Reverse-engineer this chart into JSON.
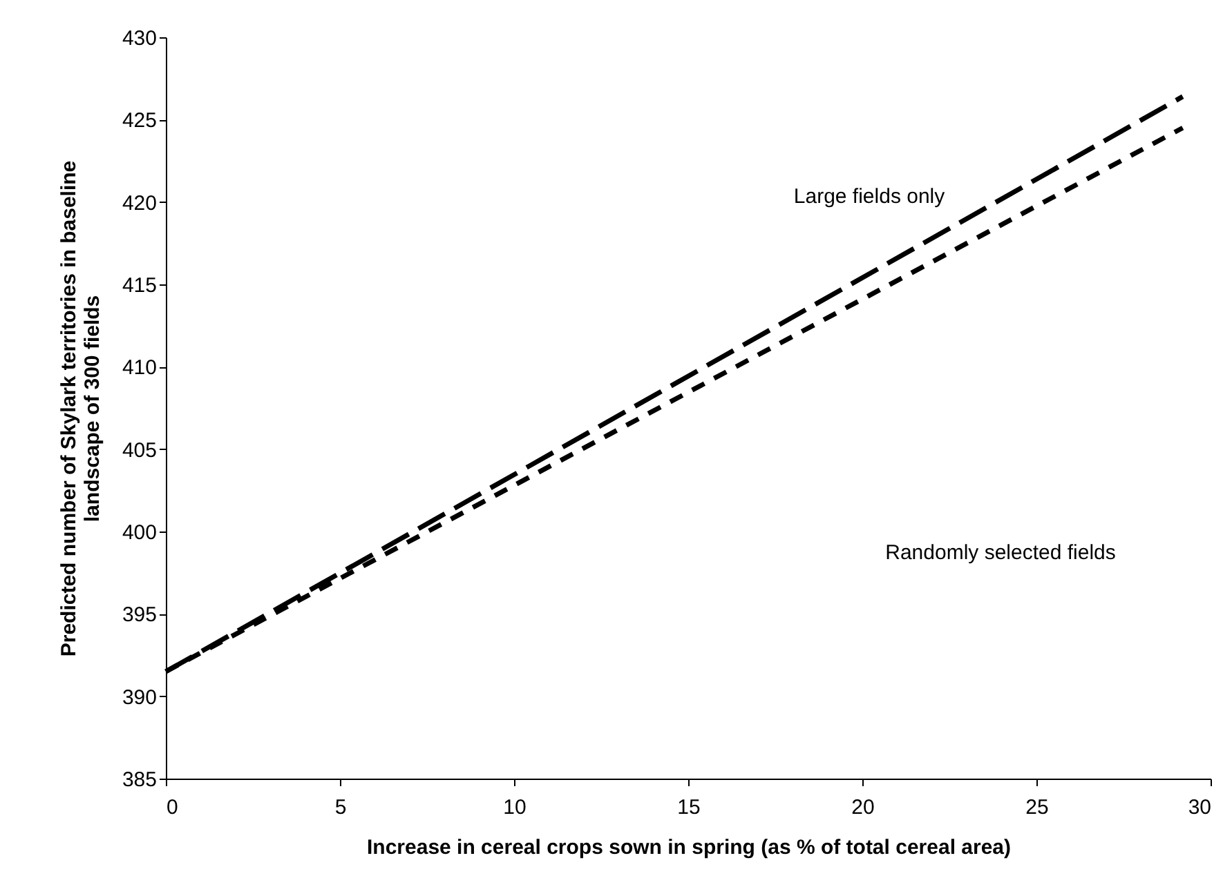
{
  "chart_data": {
    "type": "line",
    "xlabel": "Increase in cereal crops sown in spring (as % of total cereal area)",
    "ylabel": "Predicted number of Skylark territories in baseline\nlandscape of 300 fields",
    "xlim": [
      0,
      30
    ],
    "xticks": [
      0,
      5,
      10,
      15,
      20,
      25,
      30
    ],
    "ylim": [
      385,
      430
    ],
    "yticks": [
      385,
      390,
      395,
      400,
      405,
      410,
      415,
      420,
      425,
      430
    ],
    "grid": false,
    "marker": "none",
    "x": [
      0,
      29.2
    ],
    "series": [
      {
        "values": [
          391.5,
          426.4
        ],
        "color": "#000000",
        "line_style": "dashed"
      },
      {
        "values": [
          391.5,
          424.5
        ],
        "color": "#000000",
        "line_style": "dashed"
      }
    ],
    "annotations": [
      "Large fields only",
      "Randomly selected fields"
    ]
  }
}
